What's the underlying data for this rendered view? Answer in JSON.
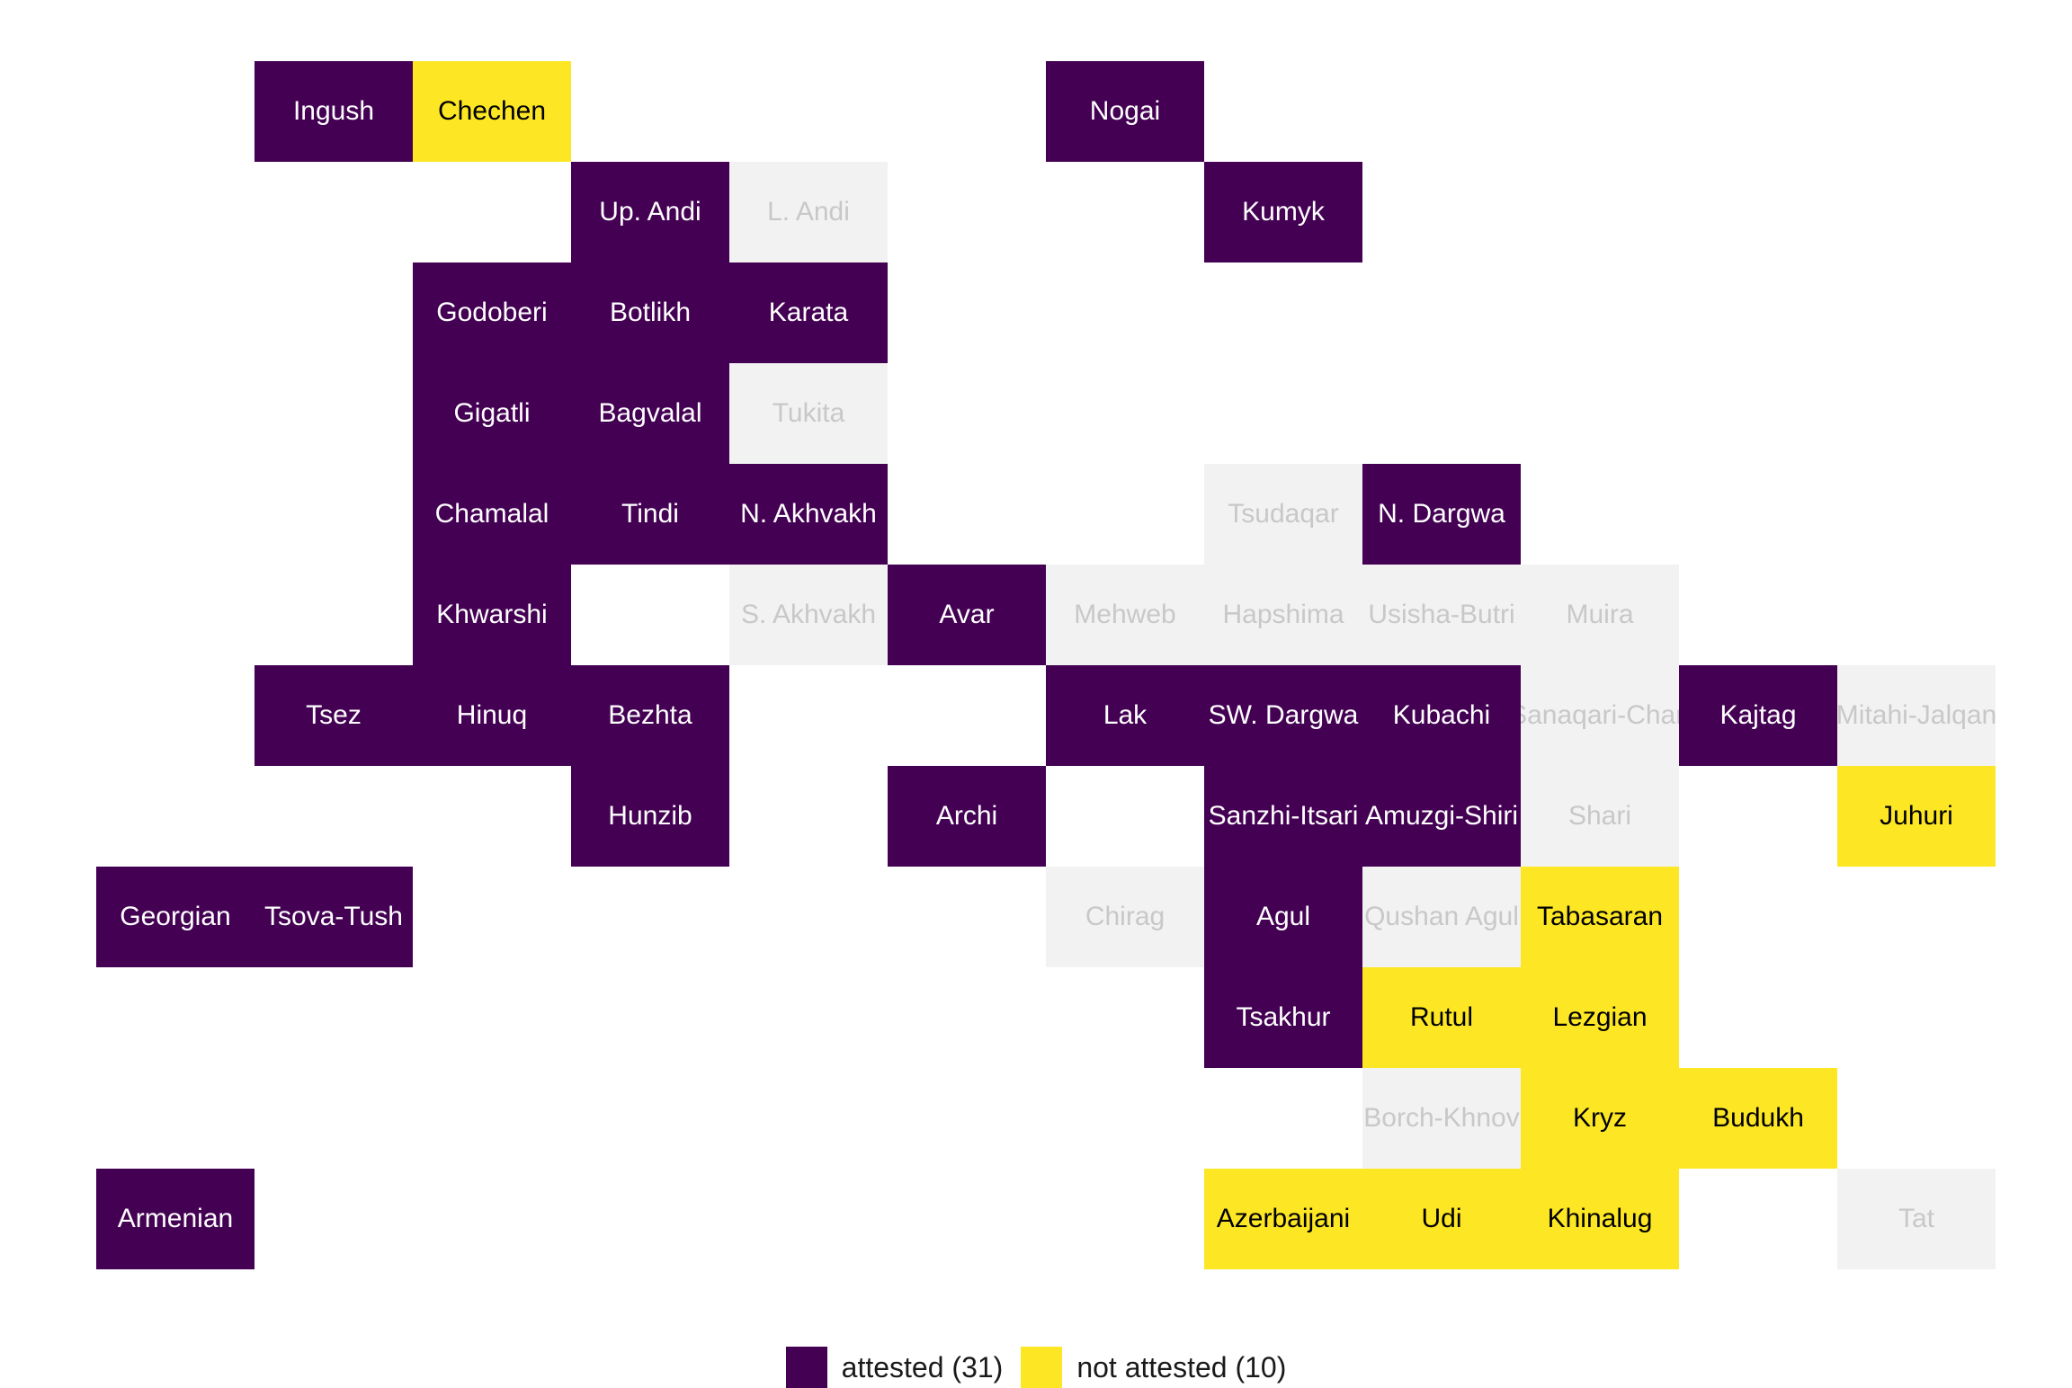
{
  "colors": {
    "attested": "#440154",
    "not_attested": "#FDE725",
    "no_data": "#F2F2F2",
    "text_on_attested": "#FFFFFF",
    "text_on_not_attested": "#000000",
    "text_on_no_data": "#C8C8C8"
  },
  "legend": {
    "attested_label": "attested (31)",
    "not_attested_label": "not attested (10)"
  },
  "cells": [
    {
      "name": "Ingush",
      "status": "attested",
      "row": 0,
      "col": 1
    },
    {
      "name": "Chechen",
      "status": "not_attested",
      "row": 0,
      "col": 2
    },
    {
      "name": "Nogai",
      "status": "attested",
      "row": 0,
      "col": 6
    },
    {
      "name": "Up. Andi",
      "status": "attested",
      "row": 1,
      "col": 3
    },
    {
      "name": "L. Andi",
      "status": "no_data",
      "row": 1,
      "col": 4
    },
    {
      "name": "Kumyk",
      "status": "attested",
      "row": 1,
      "col": 7
    },
    {
      "name": "Godoberi",
      "status": "attested",
      "row": 2,
      "col": 2
    },
    {
      "name": "Botlikh",
      "status": "attested",
      "row": 2,
      "col": 3
    },
    {
      "name": "Karata",
      "status": "attested",
      "row": 2,
      "col": 4
    },
    {
      "name": "Gigatli",
      "status": "attested",
      "row": 3,
      "col": 2
    },
    {
      "name": "Bagvalal",
      "status": "attested",
      "row": 3,
      "col": 3
    },
    {
      "name": "Tukita",
      "status": "no_data",
      "row": 3,
      "col": 4
    },
    {
      "name": "Chamalal",
      "status": "attested",
      "row": 4,
      "col": 2
    },
    {
      "name": "Tindi",
      "status": "attested",
      "row": 4,
      "col": 3
    },
    {
      "name": "N. Akhvakh",
      "status": "attested",
      "row": 4,
      "col": 4
    },
    {
      "name": "Tsudaqar",
      "status": "no_data",
      "row": 4,
      "col": 7
    },
    {
      "name": "N. Dargwa",
      "status": "attested",
      "row": 4,
      "col": 8
    },
    {
      "name": "Khwarshi",
      "status": "attested",
      "row": 5,
      "col": 2
    },
    {
      "name": "S. Akhvakh",
      "status": "no_data",
      "row": 5,
      "col": 4
    },
    {
      "name": "Avar",
      "status": "attested",
      "row": 5,
      "col": 5
    },
    {
      "name": "Mehweb",
      "status": "no_data",
      "row": 5,
      "col": 6
    },
    {
      "name": "Hapshima",
      "status": "no_data",
      "row": 5,
      "col": 7
    },
    {
      "name": "Usisha-Butri",
      "status": "no_data",
      "row": 5,
      "col": 8
    },
    {
      "name": "Muira",
      "status": "no_data",
      "row": 5,
      "col": 9
    },
    {
      "name": "Tsez",
      "status": "attested",
      "row": 6,
      "col": 1
    },
    {
      "name": "Hinuq",
      "status": "attested",
      "row": 6,
      "col": 2
    },
    {
      "name": "Bezhta",
      "status": "attested",
      "row": 6,
      "col": 3
    },
    {
      "name": "Lak",
      "status": "attested",
      "row": 6,
      "col": 6
    },
    {
      "name": "SW. Dargwa",
      "status": "attested",
      "row": 6,
      "col": 7
    },
    {
      "name": "Kubachi",
      "status": "attested",
      "row": 6,
      "col": 8
    },
    {
      "name": "Sanaqari-Chan",
      "status": "no_data",
      "row": 6,
      "col": 9
    },
    {
      "name": "Kajtag",
      "status": "attested",
      "row": 6,
      "col": 10
    },
    {
      "name": "Mitahi-Jalqan",
      "status": "no_data",
      "row": 6,
      "col": 11
    },
    {
      "name": "Hunzib",
      "status": "attested",
      "row": 7,
      "col": 3
    },
    {
      "name": "Archi",
      "status": "attested",
      "row": 7,
      "col": 5
    },
    {
      "name": "Sanzhi-Itsari",
      "status": "attested",
      "row": 7,
      "col": 7
    },
    {
      "name": "Amuzgi-Shiri",
      "status": "attested",
      "row": 7,
      "col": 8
    },
    {
      "name": "Shari",
      "status": "no_data",
      "row": 7,
      "col": 9
    },
    {
      "name": "Juhuri",
      "status": "not_attested",
      "row": 7,
      "col": 11
    },
    {
      "name": "Georgian",
      "status": "attested",
      "row": 8,
      "col": 0
    },
    {
      "name": "Tsova-Tush",
      "status": "attested",
      "row": 8,
      "col": 1
    },
    {
      "name": "Chirag",
      "status": "no_data",
      "row": 8,
      "col": 6
    },
    {
      "name": "Agul",
      "status": "attested",
      "row": 8,
      "col": 7
    },
    {
      "name": "Qushan Agul",
      "status": "no_data",
      "row": 8,
      "col": 8
    },
    {
      "name": "Tabasaran",
      "status": "not_attested",
      "row": 8,
      "col": 9
    },
    {
      "name": "Tsakhur",
      "status": "attested",
      "row": 9,
      "col": 7
    },
    {
      "name": "Rutul",
      "status": "not_attested",
      "row": 9,
      "col": 8
    },
    {
      "name": "Lezgian",
      "status": "not_attested",
      "row": 9,
      "col": 9
    },
    {
      "name": "Borch-Khnov",
      "status": "no_data",
      "row": 10,
      "col": 8
    },
    {
      "name": "Kryz",
      "status": "not_attested",
      "row": 10,
      "col": 9
    },
    {
      "name": "Budukh",
      "status": "not_attested",
      "row": 10,
      "col": 10
    },
    {
      "name": "Armenian",
      "status": "attested",
      "row": 11,
      "col": 0
    },
    {
      "name": "Azerbaijani",
      "status": "not_attested",
      "row": 11,
      "col": 7
    },
    {
      "name": "Udi",
      "status": "not_attested",
      "row": 11,
      "col": 8
    },
    {
      "name": "Khinalug",
      "status": "not_attested",
      "row": 11,
      "col": 9
    },
    {
      "name": "Tat",
      "status": "no_data",
      "row": 11,
      "col": 10
    }
  ]
}
